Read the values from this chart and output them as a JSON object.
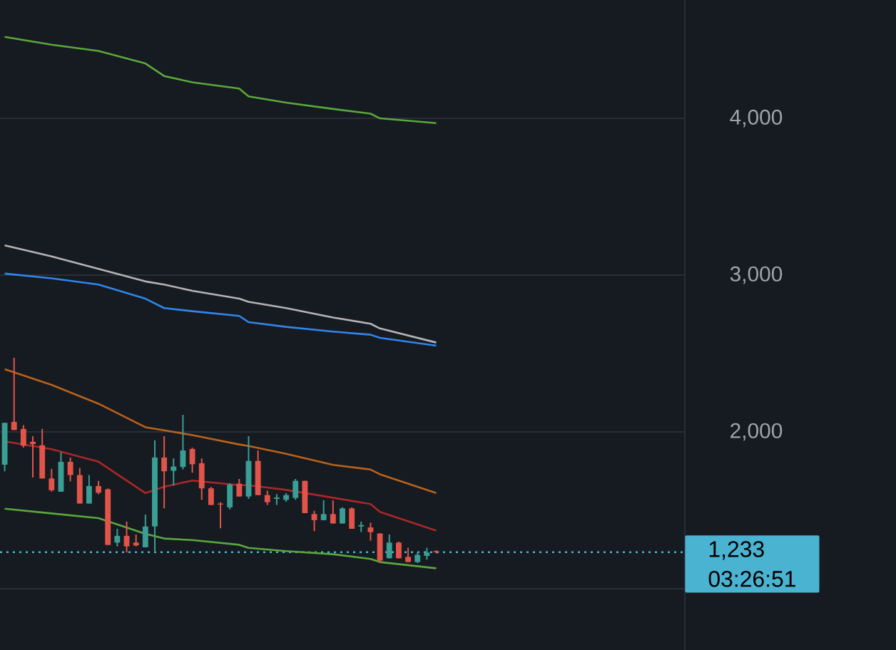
{
  "chart_data": {
    "type": "candlestick",
    "categories": [
      null,
      null,
      null,
      null,
      null,
      null,
      null,
      null,
      null,
      null,
      null,
      null,
      null,
      null,
      null,
      null,
      null,
      null,
      null,
      null,
      null,
      null,
      null,
      null,
      null,
      null,
      null,
      null,
      null,
      null,
      null,
      null,
      null,
      null,
      null,
      null,
      null,
      null,
      null,
      null,
      null,
      null,
      null,
      null,
      null,
      null,
      null,
      null,
      null,
      null,
      null,
      null,
      null,
      null,
      null,
      null,
      null,
      null,
      null,
      null,
      null,
      null,
      null,
      null,
      null,
      null,
      null,
      null,
      null,
      null,
      null,
      null,
      null
    ],
    "ohlc": [
      [
        1791,
        2058,
        1749,
        2058
      ],
      [
        2064,
        2473,
        2012,
        2012
      ],
      [
        2019,
        2043,
        1900,
        1912
      ],
      [
        1937,
        1973,
        1709,
        1922
      ],
      [
        1915,
        2019,
        1703,
        1703
      ],
      [
        1703,
        1764,
        1619,
        1628
      ],
      [
        1619,
        1870,
        1619,
        1809
      ],
      [
        1809,
        1837,
        1685,
        1725
      ],
      [
        1725,
        1770,
        1543,
        1543
      ],
      [
        1543,
        1725,
        1543,
        1655
      ],
      [
        1655,
        1688,
        1603,
        1612
      ],
      [
        1634,
        1640,
        1279,
        1279
      ],
      [
        1294,
        1382,
        1270,
        1337
      ],
      [
        1337,
        1428,
        1231,
        1270
      ],
      [
        1294,
        1346,
        1270,
        1276
      ],
      [
        1264,
        1473,
        1264,
        1397
      ],
      [
        1397,
        1946,
        1240,
        1837
      ],
      [
        1837,
        1973,
        1512,
        1749
      ],
      [
        1752,
        1831,
        1658,
        1779
      ],
      [
        1776,
        2109,
        1761,
        1882
      ],
      [
        1891,
        1900,
        1740,
        1794
      ],
      [
        1800,
        1831,
        1567,
        1640
      ],
      [
        1640,
        1649,
        1534,
        1534
      ],
      [
        1543,
        1552,
        1385,
        1537
      ],
      [
        1519,
        1673,
        1506,
        1664
      ],
      [
        1670,
        1700,
        1588,
        1588
      ],
      [
        1588,
        1973,
        1573,
        1815
      ],
      [
        1815,
        1882,
        1597,
        1597
      ],
      [
        1597,
        1625,
        1534,
        1552
      ],
      [
        1573,
        1603,
        1534,
        1582
      ],
      [
        1567,
        1609,
        1555,
        1597
      ],
      [
        1579,
        1700,
        1567,
        1688
      ],
      [
        1688,
        1688,
        1482,
        1482
      ],
      [
        1476,
        1497,
        1367,
        1437
      ],
      [
        1437,
        1564,
        1437,
        1476
      ],
      [
        1476,
        1564,
        1416,
        1416
      ],
      [
        1416,
        1519,
        1416,
        1512
      ],
      [
        1512,
        1519,
        1382,
        1382
      ],
      [
        1397,
        1428,
        1361,
        1406
      ],
      [
        1391,
        1421,
        1306,
        1361
      ],
      [
        1352,
        1355,
        1164,
        1179
      ],
      [
        1194,
        1346,
        1194,
        1294
      ],
      [
        1294,
        1300,
        1194,
        1194
      ],
      [
        1203,
        1261,
        1170,
        1170
      ],
      [
        1170,
        1231,
        1164,
        1216
      ],
      [
        1209,
        1261,
        1185,
        1231
      ],
      [
        1240,
        1245,
        1225,
        1233
      ],
      null,
      null,
      null,
      null,
      null,
      null,
      null,
      null,
      null,
      null,
      null,
      null,
      null,
      null,
      null,
      null,
      null,
      null,
      null,
      null,
      null,
      null,
      null,
      null,
      null,
      null
    ],
    "series": [
      {
        "type": "line",
        "color": "#5aa83c",
        "values": [
          4520,
          null,
          null,
          null,
          null,
          4470,
          null,
          null,
          null,
          null,
          4430,
          null,
          null,
          null,
          null,
          4350,
          null,
          4270,
          null,
          null,
          4230,
          null,
          null,
          null,
          null,
          4190,
          4140,
          null,
          null,
          null,
          4100,
          null,
          null,
          null,
          null,
          4060,
          null,
          null,
          null,
          4030,
          4000,
          null,
          null,
          null,
          null,
          null,
          3970,
          null,
          null,
          null,
          null,
          null,
          null,
          null,
          null,
          null,
          null,
          null,
          null,
          null,
          null,
          null,
          null,
          null,
          null,
          null,
          null,
          null,
          null,
          null,
          null,
          null,
          null
        ]
      },
      {
        "type": "line",
        "color": "#b4b4b4",
        "values": [
          3190,
          null,
          null,
          null,
          null,
          3120,
          null,
          null,
          null,
          null,
          3040,
          null,
          null,
          null,
          null,
          2960,
          null,
          2940,
          null,
          null,
          2900,
          null,
          null,
          null,
          null,
          2850,
          2830,
          null,
          null,
          null,
          2790,
          null,
          null,
          null,
          null,
          2730,
          null,
          null,
          null,
          2690,
          2660,
          null,
          null,
          null,
          null,
          null,
          2570,
          null,
          null,
          null,
          null,
          null,
          null,
          null,
          null,
          null,
          null,
          null,
          null,
          null,
          null,
          null,
          null,
          null,
          null,
          null,
          null,
          null,
          null,
          null,
          null,
          null,
          null
        ]
      },
      {
        "type": "line",
        "color": "#2f86eb",
        "values": [
          3010,
          null,
          null,
          null,
          null,
          2980,
          null,
          null,
          null,
          null,
          2940,
          null,
          null,
          null,
          null,
          2850,
          null,
          2790,
          null,
          null,
          2770,
          null,
          null,
          null,
          null,
          2740,
          2700,
          null,
          null,
          null,
          2670,
          null,
          null,
          null,
          null,
          2640,
          null,
          null,
          null,
          2620,
          2600,
          null,
          null,
          null,
          null,
          null,
          2550,
          null,
          null,
          null,
          null,
          null,
          null,
          null,
          null,
          null,
          null,
          null,
          null,
          null,
          null,
          null,
          null,
          null,
          null,
          null,
          null,
          null,
          null,
          null,
          null,
          null,
          null
        ]
      },
      {
        "type": "line",
        "color": "#b8631c",
        "values": [
          2400,
          null,
          null,
          null,
          null,
          2300,
          null,
          null,
          null,
          null,
          2180,
          null,
          null,
          null,
          null,
          2030,
          null,
          2010,
          null,
          null,
          1980,
          null,
          null,
          null,
          null,
          1920,
          1910,
          null,
          null,
          null,
          1860,
          null,
          null,
          null,
          null,
          1790,
          null,
          null,
          null,
          1760,
          1730,
          null,
          null,
          null,
          null,
          null,
          1610,
          null,
          null,
          null,
          null,
          null,
          null,
          null,
          null,
          null,
          null,
          null,
          null,
          null,
          null,
          null,
          null,
          null,
          null,
          null,
          null,
          null,
          null,
          null,
          null,
          null,
          null
        ]
      },
      {
        "type": "line",
        "color": "#a82828",
        "values": [
          1940,
          null,
          null,
          null,
          null,
          1890,
          null,
          null,
          null,
          null,
          1810,
          null,
          null,
          null,
          null,
          1610,
          null,
          1650,
          null,
          null,
          1690,
          null,
          null,
          null,
          null,
          1660,
          1660,
          null,
          null,
          null,
          1630,
          null,
          null,
          null,
          null,
          1580,
          null,
          null,
          null,
          1540,
          1490,
          null,
          null,
          null,
          null,
          null,
          1370,
          null,
          null,
          null,
          null,
          null,
          null,
          null,
          null,
          null,
          null,
          null,
          null,
          null,
          null,
          null,
          null,
          null,
          null,
          null,
          null,
          null,
          null,
          null,
          null,
          null,
          null
        ]
      },
      {
        "type": "line",
        "color": "#5aa83c",
        "values": [
          1510,
          null,
          null,
          null,
          null,
          1480,
          null,
          null,
          null,
          null,
          1450,
          null,
          null,
          null,
          null,
          1350,
          null,
          1320,
          null,
          null,
          1310,
          null,
          null,
          null,
          null,
          1280,
          1260,
          null,
          null,
          null,
          1240,
          null,
          null,
          null,
          null,
          1220,
          null,
          null,
          null,
          1190,
          1170,
          null,
          null,
          null,
          null,
          null,
          1130,
          null,
          null,
          null,
          null,
          null,
          null,
          null,
          null,
          null,
          null,
          null,
          null,
          null,
          null,
          null,
          null,
          null,
          null,
          null,
          null,
          null,
          null,
          null,
          null,
          null,
          null
        ]
      }
    ],
    "ylim": [
      609,
      4755
    ],
    "yticks": [
      {
        "value": 1000,
        "label": null
      },
      {
        "value": 2000,
        "label": "2,000"
      },
      {
        "value": 3000,
        "label": "3,000"
      },
      {
        "value": 4000,
        "label": "4,000"
      }
    ],
    "grid": "y",
    "ref_lines": [
      {
        "axis": "y",
        "value": 1233,
        "label": "1,233",
        "color": "#4ab3d1",
        "line_style": "dotted"
      }
    ],
    "annotations": [
      "03:26:51"
    ]
  }
}
